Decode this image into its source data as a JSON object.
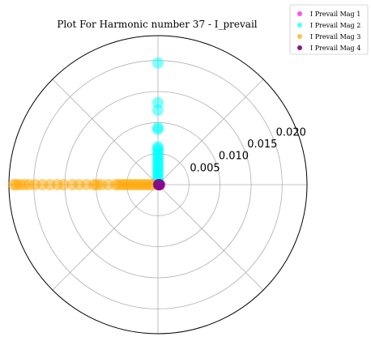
{
  "chart_data": {
    "type": "scatter",
    "projection": "polar",
    "title": "Plot For Harmonic number 37 - I_prevail",
    "r_ticks": [
      0.005,
      0.01,
      0.015,
      0.02
    ],
    "r_tick_labels": [
      "0.005",
      "0.010",
      "0.015",
      "0.020"
    ],
    "r_max": 0.024,
    "theta_gridlines_deg": [
      0,
      45,
      90,
      135,
      180,
      225,
      270,
      315
    ],
    "grid": true,
    "legend_position": "top-right",
    "series": [
      {
        "name": "I Prevail Mag 1",
        "color": "#ff00ff",
        "alpha": 0.5,
        "points": [
          {
            "theta_deg": 0,
            "r": 0.0003
          },
          {
            "theta_deg": 0,
            "r": 0.0002
          }
        ]
      },
      {
        "name": "I Prevail Mag 2",
        "color": "#00ffff",
        "alpha": 0.5,
        "points": [
          {
            "theta_deg": 90,
            "r": 0.0196
          },
          {
            "theta_deg": 90,
            "r": 0.0132
          },
          {
            "theta_deg": 90,
            "r": 0.012
          },
          {
            "theta_deg": 90,
            "r": 0.0092
          },
          {
            "theta_deg": 90,
            "r": 0.0089
          },
          {
            "theta_deg": 90,
            "r": 0.0061
          },
          {
            "theta_deg": 90,
            "r": 0.0058
          },
          {
            "theta_deg": 90,
            "r": 0.0055
          },
          {
            "theta_deg": 90,
            "r": 0.005
          },
          {
            "theta_deg": 90,
            "r": 0.0046
          },
          {
            "theta_deg": 90,
            "r": 0.0042
          },
          {
            "theta_deg": 90,
            "r": 0.0038
          },
          {
            "theta_deg": 90,
            "r": 0.0034
          },
          {
            "theta_deg": 90,
            "r": 0.003
          },
          {
            "theta_deg": 90,
            "r": 0.0026
          },
          {
            "theta_deg": 90,
            "r": 0.0022
          },
          {
            "theta_deg": 90,
            "r": 0.0018
          },
          {
            "theta_deg": 90,
            "r": 0.0014
          },
          {
            "theta_deg": 90,
            "r": 0.001
          },
          {
            "theta_deg": 90,
            "r": 0.0006
          }
        ]
      },
      {
        "name": "I Prevail Mag 3",
        "color": "#ffa500",
        "alpha": 0.5,
        "points": [
          {
            "theta_deg": 180,
            "r": 0.0232
          },
          {
            "theta_deg": 180,
            "r": 0.0228
          },
          {
            "theta_deg": 180,
            "r": 0.0222
          },
          {
            "theta_deg": 180,
            "r": 0.0215
          },
          {
            "theta_deg": 180,
            "r": 0.0208
          },
          {
            "theta_deg": 180,
            "r": 0.0198
          },
          {
            "theta_deg": 180,
            "r": 0.0186
          },
          {
            "theta_deg": 180,
            "r": 0.0174
          },
          {
            "theta_deg": 180,
            "r": 0.0162
          },
          {
            "theta_deg": 180,
            "r": 0.0152
          },
          {
            "theta_deg": 180,
            "r": 0.0138
          },
          {
            "theta_deg": 180,
            "r": 0.0127
          },
          {
            "theta_deg": 180,
            "r": 0.0115
          },
          {
            "theta_deg": 180,
            "r": 0.0103
          },
          {
            "theta_deg": 180,
            "r": 0.0098
          },
          {
            "theta_deg": 180,
            "r": 0.0091
          },
          {
            "theta_deg": 180,
            "r": 0.008
          },
          {
            "theta_deg": 180,
            "r": 0.0068
          },
          {
            "theta_deg": 180,
            "r": 0.0063
          },
          {
            "theta_deg": 180,
            "r": 0.0058
          },
          {
            "theta_deg": 180,
            "r": 0.0053
          },
          {
            "theta_deg": 180,
            "r": 0.0048
          },
          {
            "theta_deg": 180,
            "r": 0.0043
          },
          {
            "theta_deg": 180,
            "r": 0.0038
          },
          {
            "theta_deg": 180,
            "r": 0.0033
          },
          {
            "theta_deg": 180,
            "r": 0.0028
          },
          {
            "theta_deg": 180,
            "r": 0.0023
          },
          {
            "theta_deg": 180,
            "r": 0.0018
          },
          {
            "theta_deg": 180,
            "r": 0.0013
          },
          {
            "theta_deg": 180,
            "r": 0.0008
          }
        ]
      },
      {
        "name": "I Prevail Mag 4",
        "color": "#800080",
        "alpha": 0.7,
        "points": [
          {
            "theta_deg": 0,
            "r": 0.0002
          },
          {
            "theta_deg": 0,
            "r": 0.0001
          }
        ]
      }
    ]
  }
}
